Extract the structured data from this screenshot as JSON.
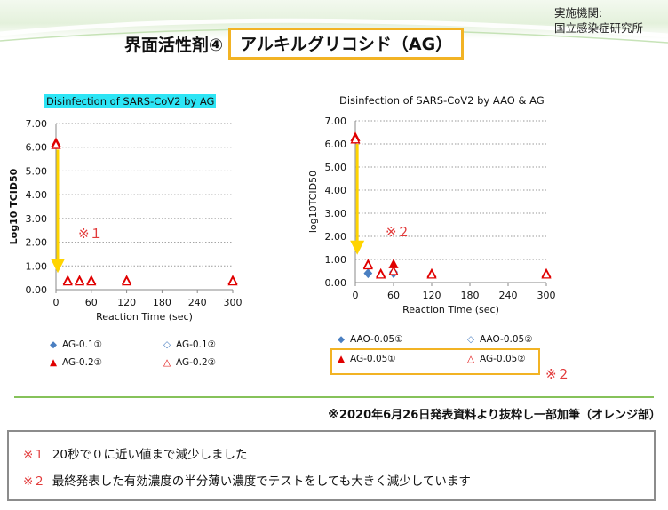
{
  "header": {
    "institute_line1": "実施機関:",
    "institute_line2": "国立感染症研究所",
    "title_prefix": "界面活性剤④",
    "title_highlight": "アルキルグリコシド（AG）"
  },
  "chart_data": [
    {
      "type": "scatter",
      "title": "Disinfection of SARS-CoV2 by AG",
      "xlabel": "Reaction Time (sec)",
      "ylabel": "Log10 TCID50",
      "xticks": [
        0,
        60,
        120,
        180,
        240,
        300
      ],
      "yticks": [
        "0.00",
        "1.00",
        "2.00",
        "3.00",
        "4.00",
        "5.00",
        "6.00",
        "7.00"
      ],
      "xlim": [
        0,
        300
      ],
      "ylim": [
        0,
        7
      ],
      "grid": "horizontal dotted",
      "series": [
        {
          "name": "AG-0.1①",
          "marker": "diamond",
          "filled": true,
          "color": "#4a7fc1",
          "points": []
        },
        {
          "name": "AG-0.1②",
          "marker": "diamond",
          "filled": false,
          "color": "#4a7fc1",
          "points": []
        },
        {
          "name": "AG-0.2①",
          "marker": "triangle",
          "filled": true,
          "color": "#e00000",
          "points": [
            [
              0,
              6.2
            ],
            [
              20,
              0.4
            ],
            [
              40,
              0.4
            ],
            [
              60,
              0.4
            ],
            [
              120,
              0.4
            ],
            [
              300,
              0.4
            ]
          ]
        },
        {
          "name": "AG-0.2②",
          "marker": "triangle",
          "filled": false,
          "color": "#e00000",
          "points": [
            [
              0,
              6.1
            ],
            [
              20,
              0.35
            ],
            [
              40,
              0.35
            ],
            [
              60,
              0.35
            ],
            [
              120,
              0.35
            ],
            [
              300,
              0.35
            ]
          ]
        }
      ],
      "annotation": {
        "text": "※１"
      }
    },
    {
      "type": "scatter",
      "title": "Disinfection of SARS-CoV2 by AAO & AG",
      "xlabel": "Reaction Time (sec)",
      "ylabel": "log10TCID50",
      "xticks": [
        0,
        60,
        120,
        180,
        240,
        300
      ],
      "yticks": [
        "0.00",
        "1.00",
        "2.00",
        "3.00",
        "4.00",
        "5.00",
        "6.00",
        "7.00"
      ],
      "xlim": [
        0,
        300
      ],
      "ylim": [
        0,
        7
      ],
      "grid": "horizontal dotted",
      "series": [
        {
          "name": "AAO-0.05①",
          "marker": "diamond",
          "filled": true,
          "color": "#4a7fc1",
          "points": [
            [
              20,
              0.4
            ],
            [
              60,
              0.4
            ]
          ]
        },
        {
          "name": "AAO-0.05②",
          "marker": "diamond",
          "filled": false,
          "color": "#4a7fc1",
          "points": [
            [
              60,
              0.45
            ]
          ]
        },
        {
          "name": "AG-0.05①",
          "marker": "triangle",
          "filled": true,
          "color": "#e00000",
          "points": [
            [
              0,
              6.3
            ],
            [
              20,
              0.8
            ],
            [
              40,
              0.4
            ],
            [
              60,
              0.8
            ],
            [
              120,
              0.4
            ],
            [
              300,
              0.4
            ]
          ]
        },
        {
          "name": "AG-0.05②",
          "marker": "triangle",
          "filled": false,
          "color": "#e00000",
          "points": [
            [
              0,
              6.2
            ],
            [
              20,
              0.75
            ],
            [
              40,
              0.35
            ],
            [
              60,
              0.5
            ],
            [
              120,
              0.35
            ],
            [
              300,
              0.35
            ]
          ]
        }
      ],
      "annotation": {
        "text": "※２"
      }
    }
  ],
  "legend_highlight_mark": "※２",
  "source_note": "※2020年6月26日発表資料より抜粋し一部加筆（オレンジ部）",
  "notes": [
    {
      "mark": "※１",
      "text": "20秒で０に近い値まで減少しました"
    },
    {
      "mark": "※２",
      "text": "最終発表した有効濃度の半分薄い濃度でテストをしても大きく減少しています"
    }
  ],
  "colors": {
    "accent_orange": "#f2b324",
    "arrow_yellow": "#ffd400",
    "note_red": "#e23a3a",
    "divider_green": "#86c25a",
    "title_highlight_cyan": "#2de5f5"
  }
}
